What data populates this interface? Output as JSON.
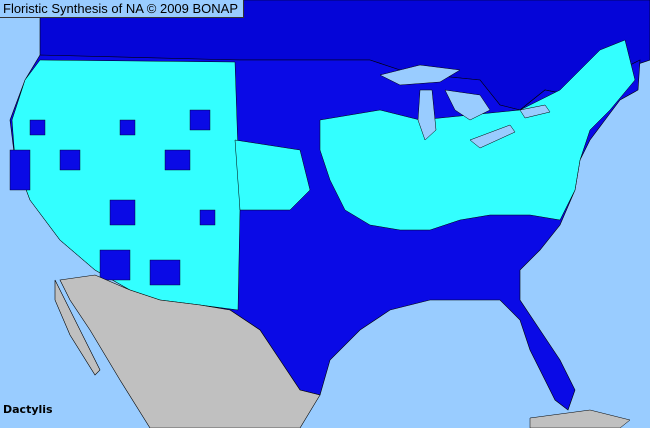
{
  "title": "Floristic Synthesis of NA © 2009 BONAP",
  "taxon_label": "Dactylis",
  "colors": {
    "ocean": "#99ccff",
    "present_county": "#33ffff",
    "state_present_county_absent": "#0a0ae6",
    "canada": "#0505d8",
    "mexico": "#c0c0c0",
    "lakes": "#99ccff",
    "borders": "#000000"
  }
}
